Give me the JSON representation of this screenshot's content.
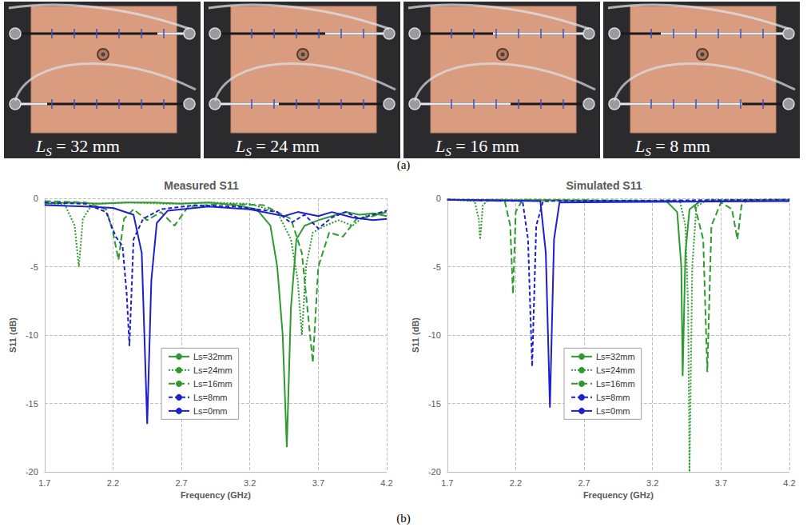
{
  "photos": {
    "panel_label": "(a)",
    "captions": [
      {
        "symbol": "L",
        "subscript": "S",
        "text": " = 32 mm"
      },
      {
        "symbol": "L",
        "subscript": "S",
        "text": " = 24 mm"
      },
      {
        "symbol": "L",
        "subscript": "S",
        "text": " = 16 mm"
      },
      {
        "symbol": "L",
        "subscript": "S",
        "text": " = 8 mm"
      }
    ]
  },
  "charts_panel_label": "(b)",
  "chart_data": [
    {
      "type": "line",
      "title": "Measured S11",
      "x_label": "Frequency (GHz)",
      "y_label": "S11 (dB)",
      "xlim": [
        1.7,
        4.2
      ],
      "xticks": [
        1.7,
        2.2,
        2.7,
        3.2,
        3.7,
        4.2
      ],
      "ylim": [
        -20,
        0
      ],
      "yticks": [
        -20,
        -15,
        -10,
        -5,
        0
      ],
      "grid": true,
      "legend": "lower center",
      "series": [
        {
          "name": "Ls=32mm",
          "color": "#2f9a2f",
          "line_style": "solid",
          "x": [
            1.7,
            1.9,
            2.1,
            2.3,
            2.5,
            2.7,
            2.9,
            3.1,
            3.25,
            3.35,
            3.4,
            3.44,
            3.47,
            3.5,
            3.54,
            3.6,
            3.7,
            3.8,
            3.9,
            4.0,
            4.1,
            4.2
          ],
          "values": [
            -0.4,
            -0.3,
            -0.4,
            -0.3,
            -0.3,
            -0.4,
            -0.3,
            -0.5,
            -0.8,
            -2.0,
            -5,
            -10,
            -18.2,
            -8,
            -3,
            -2,
            -1.6,
            -1.3,
            -1.0,
            -1.2,
            -1.1,
            -1.3
          ]
        },
        {
          "name": "Ls=24mm",
          "color": "#2f9a2f",
          "line_style": "dotted",
          "x": [
            1.7,
            1.85,
            1.92,
            1.95,
            1.98,
            2.05,
            2.3,
            2.6,
            2.9,
            3.2,
            3.4,
            3.5,
            3.55,
            3.58,
            3.61,
            3.66,
            3.75,
            3.85,
            3.95,
            4.05,
            4.2
          ],
          "values": [
            -0.3,
            -0.5,
            -2,
            -5,
            -1.5,
            -0.4,
            -0.3,
            -0.4,
            -0.3,
            -0.4,
            -1.0,
            -3,
            -6,
            -10,
            -5,
            -2.5,
            -2,
            -1.6,
            -2.0,
            -1.2,
            -1.0
          ]
        },
        {
          "name": "Ls=16mm",
          "color": "#2f9a2f",
          "line_style": "long_dash",
          "x": [
            1.7,
            2.0,
            2.15,
            2.2,
            2.24,
            2.28,
            2.35,
            2.45,
            2.55,
            2.65,
            2.75,
            3.0,
            3.3,
            3.5,
            3.58,
            3.63,
            3.66,
            3.7,
            3.78,
            3.88,
            3.98,
            4.1,
            4.2
          ],
          "values": [
            -0.2,
            -0.3,
            -0.8,
            -2.5,
            -4.5,
            -1.5,
            -0.8,
            -1.6,
            -1.0,
            -2.0,
            -0.6,
            -0.4,
            -0.5,
            -1.5,
            -4,
            -9,
            -12,
            -5,
            -2.5,
            -2.8,
            -1.5,
            -1.3,
            -1.0
          ]
        },
        {
          "name": "Ls=8mm",
          "color": "#1f1fcc",
          "line_style": "dash",
          "x": [
            1.7,
            2.0,
            2.15,
            2.22,
            2.27,
            2.3,
            2.32,
            2.35,
            2.42,
            2.55,
            2.8,
            3.1,
            3.4,
            3.5,
            3.6,
            3.7,
            3.8,
            3.9,
            4.0,
            4.2
          ],
          "values": [
            -0.3,
            -0.4,
            -1.0,
            -2.8,
            -3.5,
            -7,
            -10.8,
            -3,
            -1.5,
            -0.8,
            -0.5,
            -0.6,
            -1.0,
            -1.8,
            -1.2,
            -2.2,
            -1.4,
            -1.0,
            -1.5,
            -0.9
          ]
        },
        {
          "name": "Ls=0mm",
          "color": "#1f1fcc",
          "line_style": "solid",
          "x": [
            1.7,
            2.0,
            2.2,
            2.35,
            2.41,
            2.45,
            2.48,
            2.52,
            2.6,
            2.9,
            3.2,
            3.45,
            3.55,
            3.7,
            3.8,
            3.95,
            4.1,
            4.2
          ],
          "values": [
            -0.5,
            -0.6,
            -0.7,
            -1.2,
            -4,
            -16.5,
            -6,
            -1.8,
            -0.9,
            -0.6,
            -0.8,
            -1.3,
            -1.0,
            -1.3,
            -1.0,
            -1.4,
            -1.6,
            -1.5
          ]
        }
      ]
    },
    {
      "type": "line",
      "title": "Simulated S11",
      "x_label": "Frequency (GHz)",
      "y_label": "S11 (dB)",
      "xlim": [
        1.7,
        4.2
      ],
      "xticks": [
        1.7,
        2.2,
        2.7,
        3.2,
        3.7,
        4.2
      ],
      "ylim": [
        -20,
        0
      ],
      "yticks": [
        -20,
        -15,
        -10,
        -5,
        0
      ],
      "grid": true,
      "legend": "lower center",
      "series": [
        {
          "name": "Ls=32mm",
          "color": "#2f9a2f",
          "line_style": "solid",
          "x": [
            1.7,
            3.3,
            3.38,
            3.41,
            3.42,
            3.44,
            3.47,
            3.55,
            4.2
          ],
          "values": [
            -0.1,
            -0.2,
            -1,
            -5,
            -13,
            -4,
            -0.8,
            -0.2,
            -0.1
          ]
        },
        {
          "name": "Ls=24mm",
          "color": "#2f9a2f",
          "line_style": "dotted",
          "x": [
            1.7,
            1.9,
            1.93,
            1.94,
            1.96,
            2.0,
            3.4,
            3.44,
            3.46,
            3.47,
            3.49,
            3.52,
            3.6,
            4.2
          ],
          "values": [
            -0.1,
            -0.2,
            -1.5,
            -3,
            -0.5,
            -0.1,
            -0.2,
            -2,
            -8,
            -20,
            -5,
            -0.6,
            -0.1,
            -0.1
          ]
        },
        {
          "name": "Ls=16mm",
          "color": "#2f9a2f",
          "line_style": "long_dash",
          "x": [
            1.7,
            2.12,
            2.16,
            2.18,
            2.2,
            2.25,
            3.5,
            3.57,
            3.6,
            3.63,
            3.7,
            3.78,
            3.82,
            3.85,
            3.9,
            4.2
          ],
          "values": [
            -0.1,
            -0.2,
            -2,
            -7,
            -1,
            -0.1,
            -0.2,
            -3,
            -12.7,
            -2,
            -0.3,
            -0.8,
            -3,
            -0.5,
            -0.1,
            -0.2
          ]
        },
        {
          "name": "Ls=8mm",
          "color": "#1f1fcc",
          "line_style": "dash",
          "x": [
            1.7,
            2.25,
            2.29,
            2.32,
            2.35,
            2.4,
            4.2
          ],
          "values": [
            -0.1,
            -0.2,
            -3,
            -12.3,
            -2,
            -0.2,
            -0.1
          ]
        },
        {
          "name": "Ls=0mm",
          "color": "#1f1fcc",
          "line_style": "solid",
          "x": [
            1.7,
            2.38,
            2.42,
            2.45,
            2.48,
            2.52,
            4.2
          ],
          "values": [
            -0.1,
            -0.2,
            -4,
            -15.3,
            -3,
            -0.3,
            -0.2
          ]
        }
      ]
    }
  ]
}
